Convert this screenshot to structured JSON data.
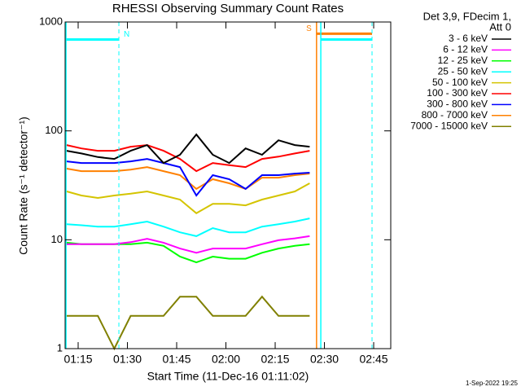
{
  "chart_data": {
    "type": "line",
    "title": "RHESSI Observing Summary Count Rates",
    "xlabel": "Start Time (11-Dec-16 01:11:02)",
    "ylabel": "Count Rate (s⁻¹ detector⁻¹)",
    "footer": "1-Sep-2022 19:25",
    "legend_title": [
      "Det 3,9, FDecim 1,",
      "Att 0"
    ],
    "log_y": true,
    "xlim": [
      71.03,
      170.2
    ],
    "ylim": [
      1,
      1000
    ],
    "xticks": [
      {
        "value": 75,
        "label": "01:15"
      },
      {
        "value": 90,
        "label": "01:30"
      },
      {
        "value": 105,
        "label": "01:45"
      },
      {
        "value": 120,
        "label": "02:00"
      },
      {
        "value": 135,
        "label": "02:15"
      },
      {
        "value": 150,
        "label": "02:30"
      },
      {
        "value": 165,
        "label": "02:45"
      }
    ],
    "yticks": [
      1,
      10,
      100,
      1000
    ],
    "x": [
      71.5,
      76,
      81,
      86,
      91,
      96,
      101,
      106,
      111,
      116,
      121,
      126,
      131,
      136,
      141,
      145.5
    ],
    "series": [
      {
        "name": "3 - 6 keV",
        "color": "#000000",
        "values": [
          65.7,
          62,
          57.5,
          55.3,
          65.7,
          74,
          50.7,
          60.3,
          92.7,
          60.3,
          50.7,
          69,
          60.3,
          82,
          74,
          71.6
        ]
      },
      {
        "name": "6 - 12 keV",
        "color": "#ff00ff",
        "values": [
          9.1,
          9.1,
          9.1,
          9.1,
          9.5,
          10.2,
          9.4,
          8.3,
          7.6,
          8.3,
          8.3,
          8.3,
          9.1,
          9.9,
          10.3,
          10.8
        ]
      },
      {
        "name": "12 - 25 keV",
        "color": "#00ff00",
        "values": [
          9.4,
          9.1,
          9.1,
          9.1,
          9.1,
          9.4,
          8.8,
          7.0,
          6.2,
          7.0,
          6.7,
          6.7,
          7.6,
          8.3,
          8.8,
          9.1
        ]
      },
      {
        "name": "25 - 50 keV",
        "color": "#00ffff",
        "values": [
          13.9,
          13.6,
          13.2,
          13.2,
          13.9,
          14.7,
          13.2,
          11.7,
          10.8,
          12.8,
          11.7,
          11.7,
          13.2,
          13.9,
          14.7,
          15.7
        ]
      },
      {
        "name": "50 - 100 keV",
        "color": "#d4c400",
        "values": [
          27.8,
          25.5,
          24.2,
          25.5,
          26.5,
          27.8,
          25.5,
          23.4,
          17.5,
          21.4,
          21.4,
          20.7,
          23.4,
          25.5,
          27.8,
          33
        ]
      },
      {
        "name": "100 - 300 keV",
        "color": "#ff0000",
        "values": [
          74,
          69,
          65.7,
          65.7,
          71.6,
          74,
          65.7,
          55.3,
          42.7,
          50.7,
          48.5,
          46.5,
          55.3,
          58,
          62,
          65.7
        ]
      },
      {
        "name": "300 - 800 keV",
        "color": "#0000ff",
        "values": [
          52.5,
          50.7,
          50.7,
          50.7,
          52.5,
          55.3,
          50.7,
          46.5,
          25.5,
          39.2,
          36,
          29.3,
          39.2,
          39.2,
          40.5,
          41.3
        ]
      },
      {
        "name": "800 - 7000 keV",
        "color": "#ff8000",
        "values": [
          45,
          42.7,
          42.7,
          42.7,
          44,
          46.5,
          42.7,
          39.2,
          29.3,
          36,
          33,
          29.3,
          37.2,
          37.2,
          39.2,
          40.5
        ]
      },
      {
        "name": "7000 - 15000 keV",
        "color": "#808000",
        "values": [
          2,
          2,
          2,
          1,
          2,
          2,
          2,
          3,
          3,
          2,
          2,
          2,
          3,
          2,
          2,
          2
        ]
      }
    ],
    "annotations": [
      {
        "label": "N",
        "color": "#00ffff",
        "x": [
          71.3,
          87.4
        ],
        "y": 690
      },
      {
        "label": "S",
        "color": "#ff8000",
        "x": [
          147.6,
          164.5
        ],
        "y": 780
      },
      {
        "color": "#00ffff",
        "x": [
          148.9,
          164.5
        ],
        "y": 690
      }
    ]
  }
}
